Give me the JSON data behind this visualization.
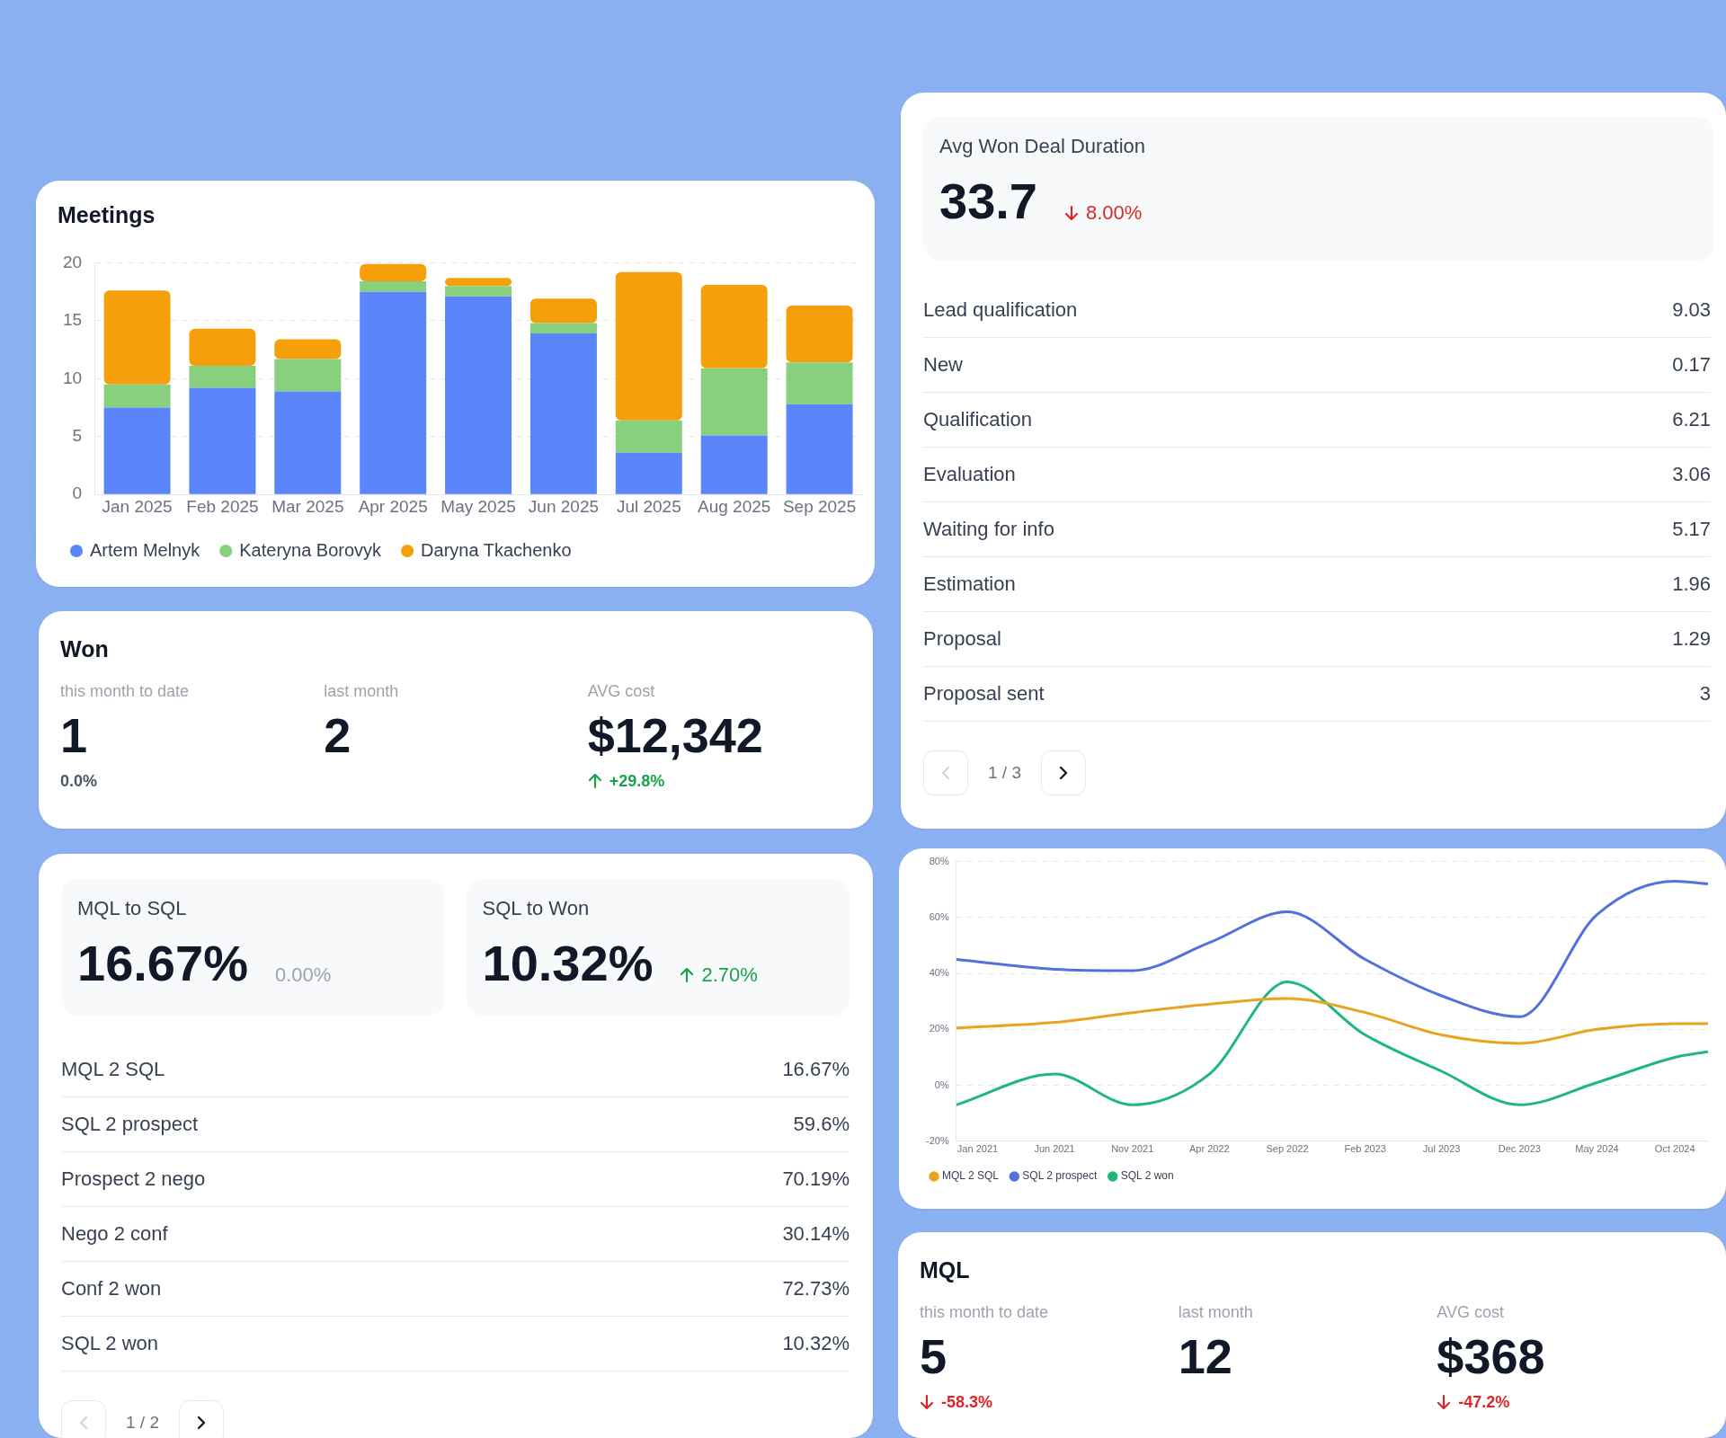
{
  "chart_data": [
    {
      "type": "bar",
      "title": "Meetings",
      "categories": [
        "Jan 2025",
        "Feb 2025",
        "Mar 2025",
        "Apr 2025",
        "May 2025",
        "Jun 2025",
        "Jul 2025",
        "Aug 2025",
        "Sep 2025"
      ],
      "stacked": true,
      "series": [
        {
          "name": "Artem Melnyk",
          "color": "#5b85fb",
          "values": [
            7.5,
            9.2,
            8.9,
            17.5,
            17.1,
            13.9,
            3.6,
            5.1,
            7.8
          ]
        },
        {
          "name": "Kateryna Borovyk",
          "color": "#88cf7e",
          "values": [
            2,
            1.9,
            2.8,
            0.9,
            0.9,
            0.9,
            2.8,
            5.8,
            3.6
          ]
        },
        {
          "name": "Daryna Tkachenko",
          "color": "#f59f0b",
          "values": [
            8.1,
            3.2,
            1.7,
            1.5,
            0.7,
            2.1,
            12.8,
            7.2,
            4.9
          ]
        }
      ],
      "ylim": [
        0,
        20
      ],
      "yticks": [
        0,
        5,
        10,
        15,
        20
      ],
      "grid": "y",
      "legend": "bottom left"
    },
    {
      "type": "other",
      "annotations": [
        "Avg Won Deal Duration",
        "33.7",
        "8.00%"
      ]
    },
    {
      "type": "other",
      "annotations": [
        "Lead qualification",
        "9.03",
        "New",
        "0.17",
        "Qualification",
        "6.21",
        "Evaluation",
        "3.06",
        "Waiting for info",
        "5.17",
        "Estimation",
        "1.96",
        "Proposal",
        "1.29",
        "Proposal sent",
        "3",
        "1 / 3"
      ]
    },
    {
      "type": "other",
      "title": "Won",
      "annotations": [
        "this month to date",
        "1",
        "0.0%",
        "last month",
        "2",
        "AVG cost",
        "$12,342",
        "+29.8%"
      ]
    },
    {
      "type": "line",
      "x": [
        "2020-11-20",
        "2021-06-01",
        "2021-11-01",
        "2022-04-01",
        "2022-09-01",
        "2023-02-01",
        "2023-07-01",
        "2023-12-01",
        "2024-05-01",
        "2024-10-01",
        "2024-12-05"
      ],
      "series": [
        {
          "name": "MQL 2 SQL",
          "color": "#eaa221",
          "values": [
            20.5,
            22.5,
            26,
            29,
            31,
            26,
            18,
            15,
            20,
            22,
            22
          ]
        },
        {
          "name": "SQL 2 prospect",
          "color": "#5470dd",
          "values": [
            45,
            41.5,
            41,
            51,
            62,
            45,
            32,
            24.5,
            61,
            73,
            72
          ]
        },
        {
          "name": "SQL 2 won",
          "color": "#1db87a",
          "values": [
            -7,
            4,
            -7,
            4,
            37,
            18,
            5,
            -7,
            1,
            10,
            12
          ]
        }
      ],
      "xlim": [
        "2020-11-20",
        "2024-12-05"
      ],
      "xticks": [
        {
          "value": "2021-01-01",
          "label": "Jan 2021"
        },
        {
          "value": "2021-06-01",
          "label": "Jun 2021"
        },
        {
          "value": "2021-11-01",
          "label": "Nov 2021"
        },
        {
          "value": "2022-04-01",
          "label": "Apr 2022"
        },
        {
          "value": "2022-09-01",
          "label": "Sep 2022"
        },
        {
          "value": "2023-02-01",
          "label": "Feb 2023"
        },
        {
          "value": "2023-07-01",
          "label": "Jul 2023"
        },
        {
          "value": "2023-12-01",
          "label": "Dec 2023"
        },
        {
          "value": "2024-05-01",
          "label": "May 2024"
        },
        {
          "value": "2024-10-01",
          "label": "Oct 2024"
        }
      ],
      "ylim": [
        -20,
        80
      ],
      "yticks": [
        {
          "value": -20,
          "label": "-20%"
        },
        {
          "value": 0,
          "label": "0%"
        },
        {
          "value": 20,
          "label": "20%"
        },
        {
          "value": 40,
          "label": "40%"
        },
        {
          "value": 60,
          "label": "60%"
        },
        {
          "value": 80,
          "label": "80%"
        }
      ],
      "grid": "y",
      "legend": "bottom left",
      "marker": "none"
    },
    {
      "type": "other",
      "annotations": [
        "MQL to SQL",
        "16.67%",
        "0.00%",
        "SQL to Won",
        "10.32%",
        "2.70%"
      ]
    },
    {
      "type": "other",
      "annotations": [
        "MQL 2 SQL",
        "16.67%",
        "SQL 2 prospect",
        "59.6%",
        "Prospect 2 nego",
        "70.19%",
        "Nego 2 conf",
        "30.14%",
        "Conf 2 won",
        "72.73%",
        "SQL 2 won",
        "10.32%",
        "1 / 2"
      ]
    },
    {
      "type": "other",
      "title": "MQL",
      "annotations": [
        "this month to date",
        "5",
        "-58.3%",
        "last month",
        "12",
        "AVG cost",
        "$368",
        "-47.2%"
      ]
    }
  ]
}
